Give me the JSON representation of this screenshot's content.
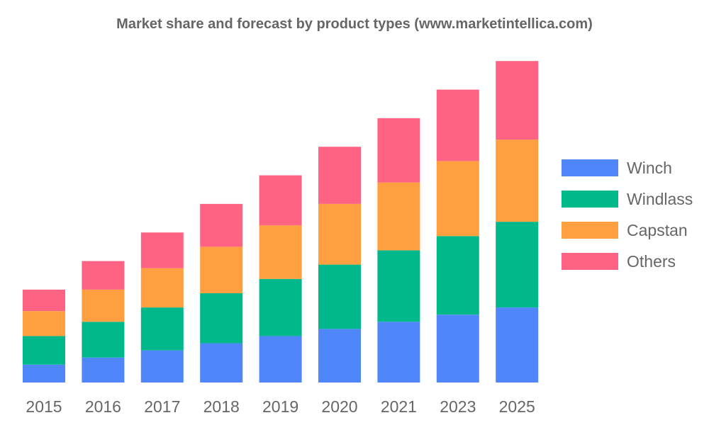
{
  "chart_data": {
    "type": "bar",
    "stacked": true,
    "title": "Market share and forecast by product types (www.marketintellica.com)",
    "categories": [
      "2015",
      "2016",
      "2017",
      "2018",
      "2019",
      "2020",
      "2021",
      "2023",
      "2025"
    ],
    "series": [
      {
        "name": "Winch",
        "color": "#4F87FB",
        "values": [
          2.5,
          3.5,
          4.5,
          5.5,
          6.5,
          7.5,
          8.5,
          9.5,
          10.5
        ]
      },
      {
        "name": "Windlass",
        "color": "#00B88A",
        "values": [
          4.0,
          5.0,
          6.0,
          7.0,
          8.0,
          9.0,
          10.0,
          11.0,
          12.0
        ]
      },
      {
        "name": "Capstan",
        "color": "#FF9F40",
        "values": [
          3.5,
          4.5,
          5.5,
          6.5,
          7.5,
          8.5,
          9.5,
          10.5,
          11.5
        ]
      },
      {
        "name": "Others",
        "color": "#FF6384",
        "values": [
          3.0,
          4.0,
          5.0,
          6.0,
          7.0,
          8.0,
          9.0,
          10.0,
          11.0
        ]
      }
    ],
    "ylim": [
      0,
      47
    ],
    "grid": false,
    "legend": "right",
    "xlabel": "",
    "ylabel": ""
  }
}
